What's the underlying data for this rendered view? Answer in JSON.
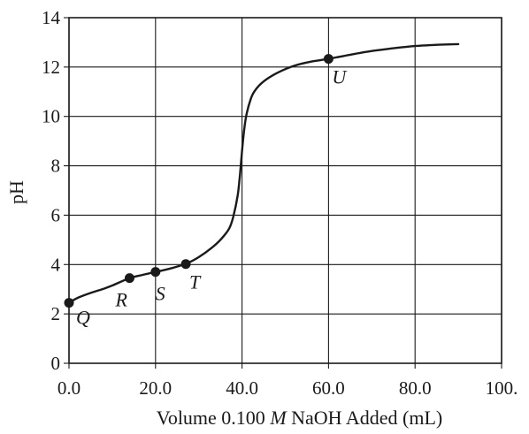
{
  "chart_data": {
    "type": "line",
    "title": "",
    "xlabel": "Volume 0.100 M NaOH Added (mL)",
    "xlabel_parts": {
      "before": "Volume 0.100 ",
      "italic": "M",
      "after": " NaOH Added (mL)"
    },
    "ylabel": "pH",
    "xlim": [
      0,
      100
    ],
    "ylim": [
      0,
      14
    ],
    "grid": true,
    "x_ticks": [
      {
        "value": 0,
        "label": "0.0"
      },
      {
        "value": 20,
        "label": "20.0"
      },
      {
        "value": 40,
        "label": "40.0"
      },
      {
        "value": 60,
        "label": "60.0"
      },
      {
        "value": 80,
        "label": "80.0"
      },
      {
        "value": 100,
        "label": "100."
      }
    ],
    "y_ticks": [
      {
        "value": 0,
        "label": "0"
      },
      {
        "value": 2,
        "label": "2"
      },
      {
        "value": 4,
        "label": "4"
      },
      {
        "value": 6,
        "label": "6"
      },
      {
        "value": 8,
        "label": "8"
      },
      {
        "value": 10,
        "label": "10"
      },
      {
        "value": 12,
        "label": "12"
      },
      {
        "value": 14,
        "label": "14"
      }
    ],
    "series": [
      {
        "x": [
          0,
          2,
          5,
          8,
          10,
          14,
          17,
          20,
          23,
          26,
          27,
          30,
          33,
          35,
          37,
          38,
          39,
          39.5,
          40,
          40.5,
          41,
          42,
          43,
          45,
          48,
          52,
          56,
          60,
          65,
          70,
          75,
          80,
          85,
          90
        ],
        "y": [
          2.45,
          2.65,
          2.85,
          3.02,
          3.15,
          3.45,
          3.58,
          3.7,
          3.82,
          3.97,
          4.02,
          4.3,
          4.68,
          5.0,
          5.45,
          5.95,
          6.8,
          7.6,
          8.6,
          9.45,
          10.05,
          10.7,
          11.05,
          11.42,
          11.75,
          12.05,
          12.22,
          12.33,
          12.5,
          12.65,
          12.76,
          12.85,
          12.9,
          12.93
        ]
      }
    ],
    "points": [
      {
        "label": "Q",
        "x": 0,
        "y": 2.45
      },
      {
        "label": "R",
        "x": 14,
        "y": 3.45
      },
      {
        "label": "S",
        "x": 20,
        "y": 3.7
      },
      {
        "label": "T",
        "x": 27,
        "y": 4.02
      },
      {
        "label": "U",
        "x": 60,
        "y": 12.33
      }
    ]
  }
}
